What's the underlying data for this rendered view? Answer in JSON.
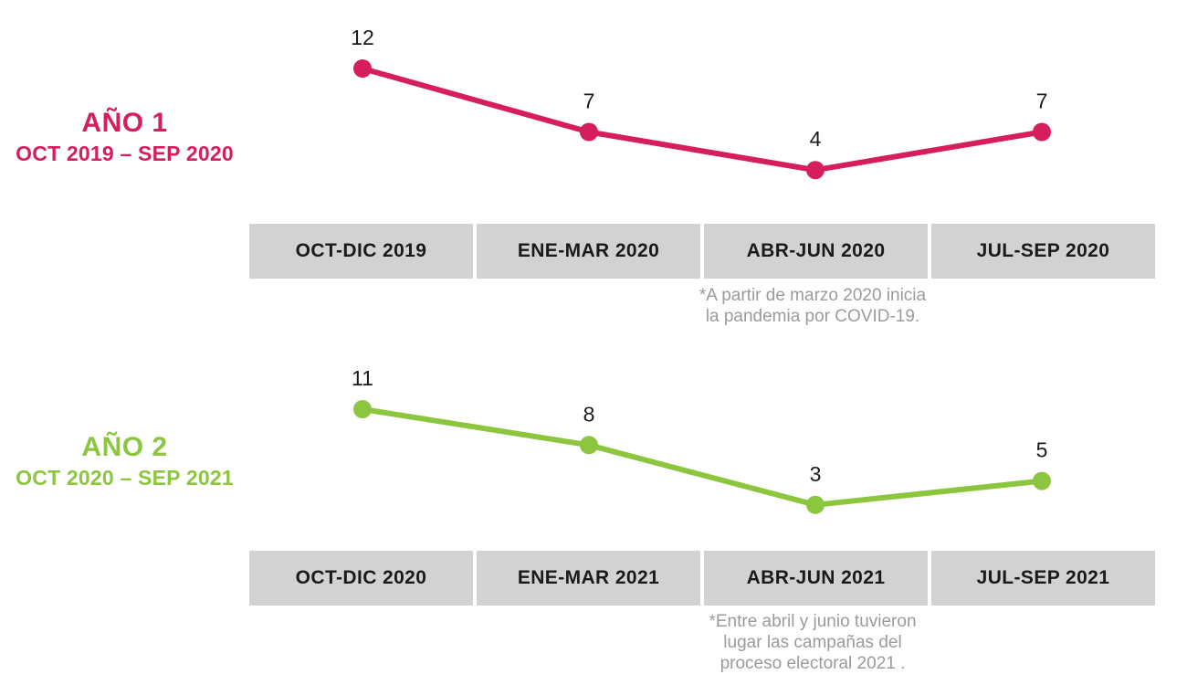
{
  "chart_data": [
    {
      "type": "line",
      "title": "AÑO 1",
      "subtitle": "OCT 2019 – SEP 2020",
      "line_color": "#d61e5c",
      "categories": [
        "OCT-DIC 2019",
        "ENE-MAR 2020",
        "ABR-JUN 2020",
        "JUL-SEP 2020"
      ],
      "values": [
        12,
        7,
        4,
        7
      ],
      "xlabel": "",
      "ylabel": "",
      "grid": false,
      "value_labels": true,
      "legend_position": "left",
      "footnote_lines": [
        "*A partir de marzo 2020 inicia",
        "la pandemia por COVID-19."
      ]
    },
    {
      "type": "line",
      "title": "AÑO 2",
      "subtitle": "OCT 2020 – SEP 2021",
      "line_color": "#8cc63f",
      "categories": [
        "OCT-DIC 2020",
        "ENE-MAR 2021",
        "ABR-JUN 2021",
        "JUL-SEP 2021"
      ],
      "values": [
        11,
        8,
        3,
        5
      ],
      "xlabel": "",
      "ylabel": "",
      "grid": false,
      "value_labels": true,
      "legend_position": "left",
      "footnote_lines": [
        "*Entre abril y junio tuvieron",
        "lugar las campañas del",
        "proceso electoral 2021 ."
      ]
    }
  ],
  "colors": {
    "background": "#ffffff",
    "category_box_bg": "#d2d2d2",
    "category_text": "#1a1a1a",
    "value_label_text": "#1a1a1a",
    "footnote_text": "#9b9b9b"
  }
}
